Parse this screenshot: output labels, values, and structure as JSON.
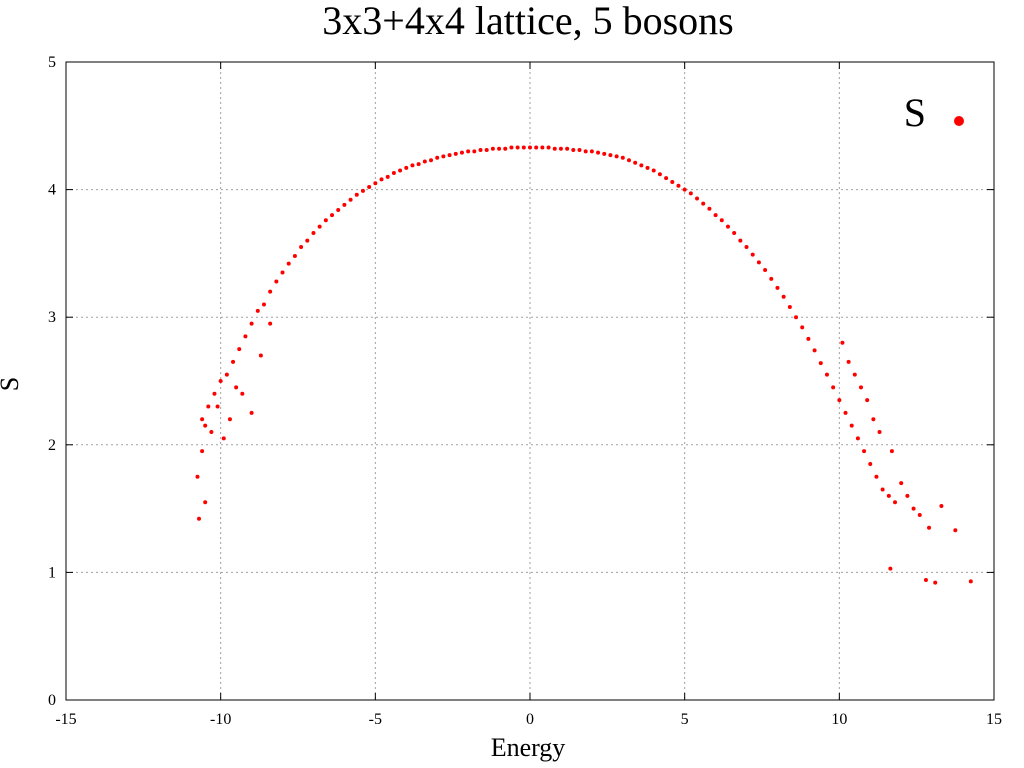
{
  "chart_data": {
    "type": "scatter",
    "title": "3x3+4x4 lattice, 5 bosons",
    "xlabel": "Energy",
    "ylabel": "S",
    "xlim": [
      -15,
      15
    ],
    "ylim": [
      0,
      5
    ],
    "xticks": [
      -15,
      -10,
      -5,
      0,
      5,
      10,
      15
    ],
    "yticks": [
      0,
      1,
      2,
      3,
      4,
      5
    ],
    "grid": true,
    "legend_position": "top-right",
    "marker_color": "#ff0000",
    "series": [
      {
        "name": "S",
        "x": [
          -10.7,
          -10.75,
          -10.6,
          -10.5,
          -10.3,
          -10.6,
          -10.4,
          -10.2,
          -10.0,
          -9.8,
          -9.6,
          -9.4,
          -9.2,
          -9.0,
          -8.8,
          -8.6,
          -8.4,
          -8.2,
          -8.0,
          -7.8,
          -7.6,
          -7.4,
          -7.2,
          -7.0,
          -6.8,
          -6.6,
          -6.4,
          -6.2,
          -6.0,
          -5.8,
          -5.6,
          -5.4,
          -5.2,
          -5.0,
          -4.8,
          -4.6,
          -4.4,
          -4.2,
          -4.0,
          -3.8,
          -3.6,
          -3.4,
          -3.2,
          -3.0,
          -2.8,
          -2.6,
          -2.4,
          -2.2,
          -2.0,
          -1.8,
          -1.6,
          -1.4,
          -1.2,
          -1.0,
          -0.8,
          -0.6,
          -0.4,
          -0.2,
          0.0,
          0.2,
          0.4,
          0.6,
          0.8,
          1.0,
          1.2,
          1.4,
          1.6,
          1.8,
          2.0,
          2.2,
          2.4,
          2.6,
          2.8,
          3.0,
          3.2,
          3.4,
          3.6,
          3.8,
          4.0,
          4.2,
          4.4,
          4.6,
          4.8,
          5.0,
          5.2,
          5.4,
          5.6,
          5.8,
          6.0,
          6.2,
          6.4,
          6.6,
          6.8,
          7.0,
          7.2,
          7.4,
          7.6,
          7.8,
          8.0,
          8.2,
          8.4,
          8.6,
          8.8,
          9.0,
          9.2,
          9.4,
          9.6,
          9.8,
          10.0,
          10.2,
          10.4,
          10.6,
          10.8,
          11.0,
          11.2,
          11.4,
          11.6,
          11.8,
          12.0,
          12.2,
          12.4,
          12.6,
          11.65,
          12.8,
          13.1,
          13.75,
          14.25,
          12.9,
          13.3,
          -10.5,
          -9.9,
          -9.7,
          -9.3,
          -9.0,
          -8.7,
          -8.4,
          -10.1,
          -9.5,
          10.1,
          10.5,
          10.9,
          11.3,
          11.7,
          10.3,
          10.7,
          11.1
        ],
        "y": [
          1.42,
          1.75,
          1.95,
          1.55,
          2.1,
          2.2,
          2.3,
          2.4,
          2.5,
          2.55,
          2.65,
          2.75,
          2.85,
          2.95,
          3.05,
          3.1,
          3.2,
          3.28,
          3.35,
          3.42,
          3.48,
          3.55,
          3.6,
          3.66,
          3.71,
          3.76,
          3.8,
          3.84,
          3.88,
          3.92,
          3.96,
          3.99,
          4.02,
          4.05,
          4.08,
          4.1,
          4.13,
          4.15,
          4.17,
          4.19,
          4.2,
          4.22,
          4.23,
          4.25,
          4.26,
          4.27,
          4.28,
          4.29,
          4.3,
          4.3,
          4.31,
          4.31,
          4.32,
          4.32,
          4.32,
          4.33,
          4.33,
          4.33,
          4.33,
          4.33,
          4.33,
          4.33,
          4.32,
          4.32,
          4.32,
          4.31,
          4.31,
          4.3,
          4.3,
          4.29,
          4.28,
          4.27,
          4.26,
          4.25,
          4.23,
          4.21,
          4.19,
          4.17,
          4.15,
          4.12,
          4.09,
          4.06,
          4.03,
          4.0,
          3.97,
          3.93,
          3.89,
          3.85,
          3.8,
          3.76,
          3.71,
          3.66,
          3.6,
          3.55,
          3.49,
          3.43,
          3.37,
          3.3,
          3.23,
          3.16,
          3.08,
          3.0,
          2.92,
          2.83,
          2.74,
          2.64,
          2.55,
          2.45,
          2.35,
          2.25,
          2.15,
          2.05,
          1.95,
          1.85,
          1.75,
          1.65,
          1.6,
          1.55,
          1.7,
          1.6,
          1.5,
          1.45,
          1.03,
          0.94,
          0.92,
          1.33,
          0.93,
          1.35,
          1.52,
          2.15,
          2.05,
          2.2,
          2.4,
          2.25,
          2.7,
          2.95,
          2.3,
          2.45,
          2.8,
          2.55,
          2.35,
          2.1,
          1.95,
          2.65,
          2.45,
          2.2
        ]
      }
    ]
  }
}
